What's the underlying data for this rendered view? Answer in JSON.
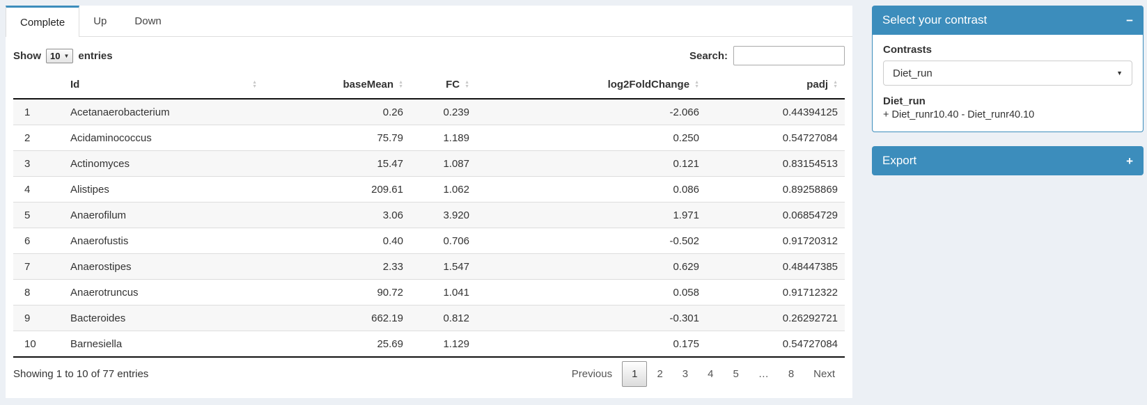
{
  "colors": {
    "accent": "#3c8dbc",
    "page_bg": "#ecf0f5"
  },
  "icons": {
    "sort_asc": "▲",
    "sort_desc": "▼",
    "caret_down": "▼"
  },
  "tabs": [
    {
      "label": "Complete",
      "active": true
    },
    {
      "label": "Up",
      "active": false
    },
    {
      "label": "Down",
      "active": false
    }
  ],
  "length_control": {
    "prefix": "Show",
    "selected": "10",
    "suffix": "entries"
  },
  "search": {
    "label": "Search:",
    "value": "",
    "placeholder": ""
  },
  "table": {
    "columns": [
      "",
      "Id",
      "baseMean",
      "FC",
      "log2FoldChange",
      "padj"
    ],
    "rows": [
      [
        "1",
        "Acetanaerobacterium",
        "0.26",
        "0.239",
        "-2.066",
        "0.44394125"
      ],
      [
        "2",
        "Acidaminococcus",
        "75.79",
        "1.189",
        "0.250",
        "0.54727084"
      ],
      [
        "3",
        "Actinomyces",
        "15.47",
        "1.087",
        "0.121",
        "0.83154513"
      ],
      [
        "4",
        "Alistipes",
        "209.61",
        "1.062",
        "0.086",
        "0.89258869"
      ],
      [
        "5",
        "Anaerofilum",
        "3.06",
        "3.920",
        "1.971",
        "0.06854729"
      ],
      [
        "6",
        "Anaerofustis",
        "0.40",
        "0.706",
        "-0.502",
        "0.91720312"
      ],
      [
        "7",
        "Anaerostipes",
        "2.33",
        "1.547",
        "0.629",
        "0.48447385"
      ],
      [
        "8",
        "Anaerotruncus",
        "90.72",
        "1.041",
        "0.058",
        "0.91712322"
      ],
      [
        "9",
        "Bacteroides",
        "662.19",
        "0.812",
        "-0.301",
        "0.26292721"
      ],
      [
        "10",
        "Barnesiella",
        "25.69",
        "1.129",
        "0.175",
        "0.54727084"
      ]
    ]
  },
  "footer": {
    "info": "Showing 1 to 10 of 77 entries",
    "pages": [
      "Previous",
      "1",
      "2",
      "3",
      "4",
      "5",
      "…",
      "8",
      "Next"
    ],
    "current_page": "1"
  },
  "sidebar": {
    "contrast_panel": {
      "title": "Select your contrast",
      "collapse_icon": "−",
      "contrasts_label": "Contrasts",
      "selected_contrast": "Diet_run",
      "contrast_name": "Diet_run",
      "contrast_formula": "+ Diet_runr10.40 - Diet_runr40.10"
    },
    "export_panel": {
      "title": "Export",
      "expand_icon": "+"
    }
  }
}
